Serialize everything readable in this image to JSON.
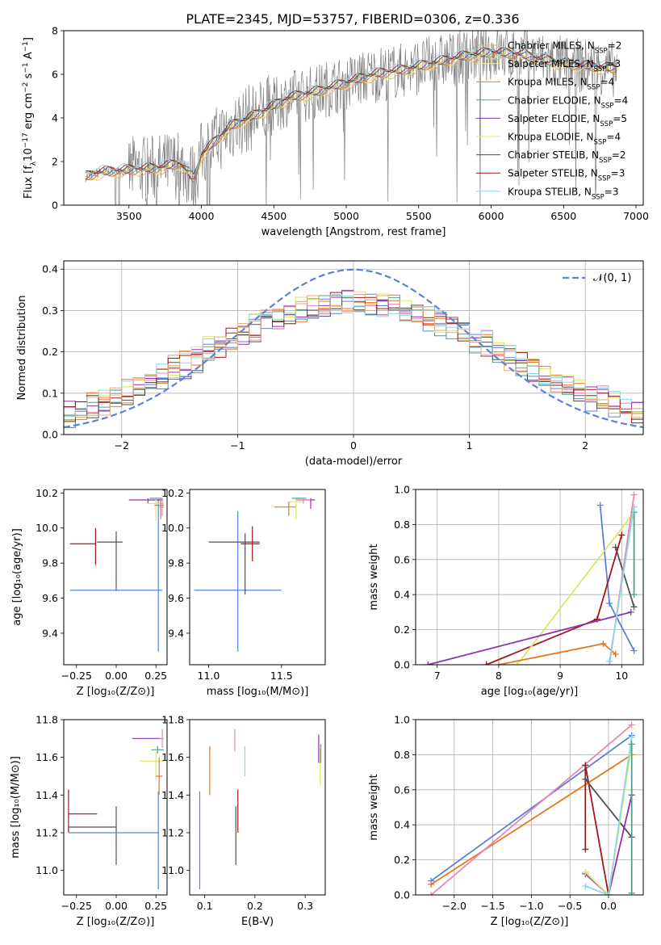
{
  "figure_title": "PLATE=2345, MJD=53757, FIBERID=0306, z=0.336",
  "colors": {
    "data": "#808080",
    "Chabrier MILES": "#e8a878",
    "Salpeter MILES": "#f0f0a0",
    "Kroupa MILES": "#e8781e",
    "Chabrier ELODIE": "#50a090",
    "Salpeter ELODIE": "#9030b0",
    "Kroupa ELODIE": "#d8e860",
    "Chabrier STELIB": "#505050",
    "Salpeter STELIB": "#a01818",
    "Kroupa STELIB": "#88d8e8",
    "blue": "#5a82d8",
    "pink": "#e888b0"
  },
  "chart_data": [
    {
      "id": "spectrum",
      "type": "line",
      "xlabel": "wavelength [Angstrom, rest frame]",
      "ylabel_main": "Flux [f",
      "ylabel_sub": "λ",
      "ylabel_rest": "10",
      "ylabel_exp": "−17",
      "ylabel_tail": " erg cm",
      "ylabel_exp2": "−2",
      "ylabel_tail2": " s",
      "ylabel_exp3": "−1",
      "ylabel_tail3": " A",
      "ylabel_exp4": "−1",
      "ylabel_end": "]",
      "xlim": [
        3050,
        7050
      ],
      "ylim": [
        0,
        8
      ],
      "xticks": [
        3500,
        4000,
        4500,
        5000,
        5500,
        6000,
        6500,
        7000
      ],
      "yticks": [
        0,
        2,
        4,
        6,
        8
      ],
      "xrange_data": [
        3200,
        6870
      ],
      "continuum_knots": [
        [
          3200,
          1.3
        ],
        [
          3300,
          1.5
        ],
        [
          3500,
          1.6
        ],
        [
          3700,
          1.7
        ],
        [
          3850,
          1.9
        ],
        [
          3950,
          1.2
        ],
        [
          4000,
          2.3
        ],
        [
          4200,
          3.6
        ],
        [
          4400,
          4.2
        ],
        [
          4600,
          4.9
        ],
        [
          4800,
          5.2
        ],
        [
          5000,
          5.6
        ],
        [
          5200,
          6.0
        ],
        [
          5400,
          6.2
        ],
        [
          5600,
          6.5
        ],
        [
          5800,
          6.8
        ],
        [
          6000,
          7.0
        ],
        [
          6200,
          6.9
        ],
        [
          6400,
          6.6
        ],
        [
          6600,
          6.4
        ],
        [
          6800,
          6.3
        ],
        [
          6870,
          6.2
        ]
      ],
      "legend": [
        {
          "name": "Chabrier MILES",
          "nssp": "2"
        },
        {
          "name": "Salpeter MILES",
          "nssp": "3"
        },
        {
          "name": "Kroupa MILES",
          "nssp": "4"
        },
        {
          "name": "Chabrier ELODIE",
          "nssp": "4"
        },
        {
          "name": "Salpeter ELODIE",
          "nssp": "5"
        },
        {
          "name": "Kroupa ELODIE",
          "nssp": "4"
        },
        {
          "name": "Chabrier STELIB",
          "nssp": "2"
        },
        {
          "name": "Salpeter STELIB",
          "nssp": "3"
        },
        {
          "name": "Kroupa STELIB",
          "nssp": "3"
        }
      ],
      "legend_location": "top-right",
      "nssp_label": "N",
      "nssp_sub": "SSP"
    },
    {
      "id": "residuals",
      "type": "histogram",
      "xlabel": "(data-model)/error",
      "ylabel": "Normed distribution",
      "xlim": [
        -2.5,
        2.5
      ],
      "ylim": [
        0,
        0.42
      ],
      "xticks": [
        -2,
        -1,
        0,
        1,
        2
      ],
      "yticks": [
        0.0,
        0.1,
        0.2,
        0.3,
        0.4
      ],
      "bin_width": 0.1,
      "gaussian": {
        "mean": 0,
        "sigma": 1,
        "label": "𝒩(0, 1)"
      },
      "legend_location": "top-right",
      "grid": true
    },
    {
      "id": "age-vs-Z",
      "type": "errorbar",
      "xlabel": "Z [log₁₀(Z/Z⊙)]",
      "ylabel": "age  [log₁₀(age/yr)]",
      "xlim": [
        -0.33,
        0.32
      ],
      "ylim": [
        9.22,
        10.22
      ],
      "xticks": [
        -0.25,
        0.0,
        0.25
      ],
      "yticks": [
        9.4,
        9.6,
        9.8,
        10.0,
        10.2
      ],
      "xtick_labels": [
        "−0.25",
        "0.00",
        "0.25"
      ],
      "points": [
        {
          "c": "Salpeter STELIB",
          "x": -0.13,
          "y": 9.91,
          "xe": [
            0.16,
            0.0
          ],
          "ye": [
            0.12,
            0.09
          ]
        },
        {
          "c": "Chabrier STELIB",
          "x": 0.0,
          "y": 9.92,
          "xe": [
            0.12,
            0.04
          ],
          "ye": [
            0.28,
            0.06
          ]
        },
        {
          "c": "blue",
          "x": 0.0,
          "y": 9.645,
          "xe": [
            0.29,
            0.29
          ],
          "ye": [
            0.0,
            0.0
          ]
        },
        {
          "c": "blue",
          "x": 0.265,
          "y": 9.645,
          "xe": [
            0.0,
            0.0
          ],
          "ye": [
            0.35,
            0.52
          ]
        },
        {
          "c": "Salpeter ELODIE",
          "x": 0.2,
          "y": 10.16,
          "xe": [
            0.12,
            0.09
          ],
          "ye": [
            0.02,
            0.01
          ]
        },
        {
          "c": "Kroupa ELODIE",
          "x": 0.25,
          "y": 10.14,
          "xe": [
            0.06,
            0.05
          ],
          "ye": [
            0.1,
            0.03
          ]
        },
        {
          "c": "Kroupa MILES",
          "x": 0.28,
          "y": 10.13,
          "xe": [
            0.04,
            0.02
          ],
          "ye": [
            0.08,
            0.04
          ]
        },
        {
          "c": "Chabrier ELODIE",
          "x": 0.26,
          "y": 10.17,
          "xe": [
            0.05,
            0.03
          ],
          "ye": [
            0.0,
            0.0
          ]
        },
        {
          "c": "pink",
          "x": 0.29,
          "y": 10.12,
          "xe": [
            0.02,
            0.01
          ],
          "ye": [
            0.05,
            0.05
          ]
        }
      ]
    },
    {
      "id": "age-vs-mass",
      "type": "errorbar",
      "xlabel": "mass [log₁₀(M/M⊙)]",
      "xlim": [
        10.87,
        11.8
      ],
      "ylim": [
        9.22,
        10.22
      ],
      "xticks": [
        11.0,
        11.5
      ],
      "yticks": [
        9.4,
        9.6,
        9.8,
        10.0,
        10.2
      ],
      "points": [
        {
          "c": "blue",
          "x": 11.2,
          "y": 9.645,
          "xe": [
            0.3,
            0.3
          ],
          "ye": [
            0.35,
            0.45
          ]
        },
        {
          "c": "Chabrier STELIB",
          "x": 11.25,
          "y": 9.92,
          "xe": [
            0.25,
            0.1
          ],
          "ye": [
            0.3,
            0.05
          ]
        },
        {
          "c": "Salpeter STELIB",
          "x": 11.3,
          "y": 9.91,
          "xe": [
            0.08,
            0.05
          ],
          "ye": [
            0.1,
            0.1
          ]
        },
        {
          "c": "Kroupa MILES",
          "x": 11.55,
          "y": 10.12,
          "xe": [
            0.1,
            0.05
          ],
          "ye": [
            0.05,
            0.03
          ]
        },
        {
          "c": "Kroupa ELODIE",
          "x": 11.6,
          "y": 10.15,
          "xe": [
            0.05,
            0.05
          ],
          "ye": [
            0.1,
            0.02
          ]
        },
        {
          "c": "Salpeter ELODIE",
          "x": 11.7,
          "y": 10.16,
          "xe": [
            0.1,
            0.03
          ],
          "ye": [
            0.05,
            0.01
          ]
        },
        {
          "c": "Chabrier ELODIE",
          "x": 11.62,
          "y": 10.17,
          "xe": [
            0.05,
            0.05
          ],
          "ye": [
            0.0,
            0.0
          ]
        },
        {
          "c": "pink",
          "x": 11.65,
          "y": 10.16,
          "xe": [
            0.05,
            0.05
          ],
          "ye": [
            0.02,
            0.01
          ]
        }
      ]
    },
    {
      "id": "weight-vs-age",
      "type": "line",
      "xlabel": "age  [log₁₀(age/yr)]",
      "ylabel": "mass weight",
      "xlim": [
        6.65,
        10.35
      ],
      "ylim": [
        0,
        1
      ],
      "xticks": [
        7,
        8,
        9,
        10
      ],
      "yticks": [
        0.0,
        0.2,
        0.4,
        0.6,
        0.8,
        1.0
      ],
      "grid": true,
      "series": [
        {
          "c": "blue",
          "pts": [
            [
              9.65,
              0.91
            ],
            [
              9.8,
              0.35
            ],
            [
              10.2,
              0.08
            ]
          ]
        },
        {
          "c": "Chabrier STELIB",
          "pts": [
            [
              9.9,
              0.67
            ],
            [
              10.2,
              0.33
            ]
          ]
        },
        {
          "c": "Salpeter STELIB",
          "pts": [
            [
              7.8,
              0.0
            ],
            [
              9.6,
              0.26
            ],
            [
              10.0,
              0.74
            ]
          ]
        },
        {
          "c": "Kroupa ELODIE",
          "pts": [
            [
              8.3,
              0.0
            ],
            [
              10.2,
              0.87
            ]
          ]
        },
        {
          "c": "Kroupa MILES",
          "pts": [
            [
              8.0,
              0.0
            ],
            [
              9.7,
              0.12
            ],
            [
              9.9,
              0.06
            ]
          ]
        },
        {
          "c": "Salpeter ELODIE",
          "pts": [
            [
              6.85,
              0.0
            ],
            [
              10.15,
              0.3
            ]
          ]
        },
        {
          "c": "pink",
          "pts": [
            [
              9.8,
              0.0
            ],
            [
              10.2,
              0.97
            ]
          ]
        },
        {
          "c": "Chabrier ELODIE",
          "pts": [
            [
              10.2,
              0.87
            ],
            [
              10.2,
              0.4
            ]
          ]
        },
        {
          "c": "Kroupa STELIB",
          "pts": [
            [
              9.8,
              0.02
            ],
            [
              10.2,
              0.9
            ]
          ]
        }
      ]
    },
    {
      "id": "mass-vs-Z",
      "type": "errorbar",
      "xlabel": "Z [log₁₀(Z/Z⊙)]",
      "ylabel": "mass [log₁₀(M/M⊙)]",
      "xlim": [
        -0.33,
        0.32
      ],
      "ylim": [
        10.87,
        11.8
      ],
      "xticks": [
        -0.25,
        0.0,
        0.25
      ],
      "yticks": [
        11.0,
        11.2,
        11.4,
        11.6,
        11.8
      ],
      "xtick_labels": [
        "−0.25",
        "0.00",
        "0.25"
      ],
      "points": [
        {
          "c": "Salpeter STELIB",
          "x": -0.3,
          "y": 11.3,
          "xe": [
            0.0,
            0.18
          ],
          "ye": [
            0.1,
            0.13
          ]
        },
        {
          "c": "Chabrier STELIB",
          "x": -0.3,
          "y": 11.23,
          "xe": [
            0.0,
            0.3
          ],
          "ye": [
            0.0,
            0.0
          ]
        },
        {
          "c": "Chabrier STELIB",
          "x": 0.0,
          "y": 11.23,
          "xe": [
            0.0,
            0.0
          ],
          "ye": [
            0.2,
            0.11
          ]
        },
        {
          "c": "blue",
          "x": -0.3,
          "y": 11.2,
          "xe": [
            0.0,
            0.57
          ],
          "ye": [
            0.0,
            0.0
          ]
        },
        {
          "c": "blue",
          "x": 0.265,
          "y": 11.2,
          "xe": [
            0.0,
            0.0
          ],
          "ye": [
            0.3,
            0.22
          ]
        },
        {
          "c": "Salpeter ELODIE",
          "x": 0.2,
          "y": 11.7,
          "xe": [
            0.1,
            0.08
          ],
          "ye": [
            0.0,
            0.0
          ]
        },
        {
          "c": "Kroupa ELODIE",
          "x": 0.25,
          "y": 11.58,
          "xe": [
            0.1,
            0.05
          ],
          "ye": [
            0.1,
            0.05
          ]
        },
        {
          "c": "Chabrier ELODIE",
          "x": 0.26,
          "y": 11.64,
          "xe": [
            0.04,
            0.04
          ],
          "ye": [
            0.02,
            0.02
          ]
        },
        {
          "c": "Kroupa MILES",
          "x": 0.27,
          "y": 11.5,
          "xe": [
            0.02,
            0.02
          ],
          "ye": [
            0.1,
            0.1
          ]
        },
        {
          "c": "pink",
          "x": 0.29,
          "y": 11.7,
          "xe": [
            0.02,
            0.01
          ],
          "ye": [
            0.05,
            0.05
          ]
        }
      ]
    },
    {
      "id": "mass-vs-ebv",
      "type": "errorbar",
      "xlabel": "E(B-V)",
      "xlim": [
        0.07,
        0.34
      ],
      "ylim": [
        10.87,
        11.8
      ],
      "xticks": [
        0.1,
        0.2,
        0.3
      ],
      "yticks": [
        11.0,
        11.2,
        11.4,
        11.6,
        11.8
      ],
      "points": [
        {
          "c": "blue",
          "x": 0.09,
          "y": 11.2,
          "xe": [
            0.0,
            0.0
          ],
          "ye": [
            0.3,
            0.22
          ]
        },
        {
          "c": "Kroupa MILES",
          "x": 0.11,
          "y": 11.52,
          "xe": [
            0.0,
            0.0
          ],
          "ye": [
            0.12,
            0.14
          ]
        },
        {
          "c": "Chabrier STELIB",
          "x": 0.162,
          "y": 11.23,
          "xe": [
            0.0,
            0.0
          ],
          "ye": [
            0.2,
            0.11
          ]
        },
        {
          "c": "Salpeter STELIB",
          "x": 0.166,
          "y": 11.3,
          "xe": [
            0.0,
            0.0
          ],
          "ye": [
            0.1,
            0.13
          ]
        },
        {
          "c": "pink",
          "x": 0.16,
          "y": 11.7,
          "xe": [
            0.0,
            0.0
          ],
          "ye": [
            0.07,
            0.05
          ]
        },
        {
          "c": "Kroupa STELIB",
          "x": 0.18,
          "y": 11.58,
          "xe": [
            0.0,
            0.0
          ],
          "ye": [
            0.08,
            0.08
          ]
        },
        {
          "c": "Salpeter ELODIE",
          "x": 0.327,
          "y": 11.67,
          "xe": [
            0.0,
            0.0
          ],
          "ye": [
            0.1,
            0.05
          ]
        },
        {
          "c": "Kroupa ELODIE",
          "x": 0.33,
          "y": 11.55,
          "xe": [
            0.0,
            0.0
          ],
          "ye": [
            0.1,
            0.1
          ]
        },
        {
          "c": "Chabrier ELODIE",
          "x": 0.331,
          "y": 11.62,
          "xe": [
            0.0,
            0.0
          ],
          "ye": [
            0.05,
            0.05
          ]
        }
      ]
    },
    {
      "id": "weight-vs-Z",
      "type": "line",
      "xlabel": "Z [log₁₀(Z/Z⊙)]",
      "ylabel": "mass weight",
      "xlim": [
        -2.5,
        0.45
      ],
      "ylim": [
        0,
        1
      ],
      "xticks": [
        -2.0,
        -1.5,
        -1.0,
        -0.5,
        0.0
      ],
      "xtick_labels": [
        "−2.0",
        "−1.5",
        "−1.0",
        "−0.5",
        "0.0"
      ],
      "yticks": [
        0.0,
        0.2,
        0.4,
        0.6,
        0.8,
        1.0
      ],
      "grid": true,
      "series": [
        {
          "c": "blue",
          "pts": [
            [
              -2.3,
              0.08
            ],
            [
              0.3,
              0.91
            ]
          ]
        },
        {
          "c": "Kroupa MILES",
          "pts": [
            [
              -2.3,
              0.06
            ],
            [
              0.3,
              0.8
            ]
          ]
        },
        {
          "c": "pink",
          "pts": [
            [
              -2.3,
              0.0
            ],
            [
              0.3,
              0.97
            ]
          ]
        },
        {
          "c": "Salpeter STELIB",
          "pts": [
            [
              -0.3,
              0.26
            ],
            [
              -0.3,
              0.74
            ],
            [
              0.0,
              0.0
            ]
          ]
        },
        {
          "c": "Chabrier STELIB",
          "pts": [
            [
              -0.3,
              0.66
            ],
            [
              0.3,
              0.33
            ]
          ]
        },
        {
          "c": "Salpeter ELODIE",
          "pts": [
            [
              -0.3,
              0.12
            ],
            [
              0.0,
              0.0
            ],
            [
              0.3,
              0.57
            ]
          ]
        },
        {
          "c": "Kroupa ELODIE",
          "pts": [
            [
              -0.3,
              0.13
            ],
            [
              0.0,
              0.0
            ],
            [
              0.3,
              0.86
            ]
          ]
        },
        {
          "c": "Kroupa STELIB",
          "pts": [
            [
              -0.3,
              0.05
            ],
            [
              0.0,
              0.0
            ],
            [
              0.3,
              0.9
            ]
          ]
        },
        {
          "c": "Chabrier ELODIE",
          "pts": [
            [
              0.3,
              0.86
            ],
            [
              0.3,
              0.01
            ]
          ]
        }
      ]
    }
  ]
}
